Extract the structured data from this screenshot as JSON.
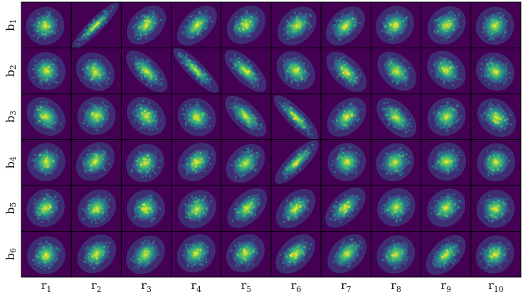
{
  "chart_data": {
    "type": "heatmap",
    "layout": "grid",
    "rows": [
      "b1",
      "b2",
      "b3",
      "b4",
      "b5",
      "b6"
    ],
    "cols": [
      "r1",
      "r2",
      "r3",
      "r4",
      "r5",
      "r6",
      "r7",
      "r8",
      "r9",
      "r10"
    ],
    "row_labels": [
      {
        "main": "b",
        "sub": "1"
      },
      {
        "main": "b",
        "sub": "2"
      },
      {
        "main": "b",
        "sub": "3"
      },
      {
        "main": "b",
        "sub": "4"
      },
      {
        "main": "b",
        "sub": "5"
      },
      {
        "main": "b",
        "sub": "6"
      }
    ],
    "col_labels": [
      {
        "main": "r",
        "sub": "1"
      },
      {
        "main": "r",
        "sub": "2"
      },
      {
        "main": "r",
        "sub": "3"
      },
      {
        "main": "r",
        "sub": "4"
      },
      {
        "main": "r",
        "sub": "5"
      },
      {
        "main": "r",
        "sub": "6"
      },
      {
        "main": "r",
        "sub": "7"
      },
      {
        "main": "r",
        "sub": "8"
      },
      {
        "main": "r",
        "sub": "9"
      },
      {
        "main": "r",
        "sub": "10"
      }
    ],
    "correlation": [
      [
        0.05,
        0.95,
        0.3,
        0.4,
        0.2,
        0.25,
        0.3,
        0.1,
        0.15,
        0.05
      ],
      [
        -0.05,
        -0.15,
        -0.55,
        -0.85,
        -0.6,
        -0.2,
        -0.45,
        -0.3,
        -0.2,
        -0.1
      ],
      [
        -0.2,
        0.05,
        -0.2,
        -0.1,
        -0.55,
        -0.8,
        0.3,
        -0.4,
        0.1,
        -0.2
      ],
      [
        0.05,
        0.2,
        0.1,
        0.2,
        0.25,
        0.75,
        0.05,
        0.1,
        0.05,
        0.05
      ],
      [
        0.1,
        0.15,
        0.05,
        0.15,
        0.4,
        0.35,
        0.45,
        0.1,
        0.15,
        0.05
      ],
      [
        0.05,
        0.2,
        0.2,
        0.15,
        0.15,
        0.35,
        0.3,
        0.1,
        0.4,
        0.1
      ]
    ],
    "colormap": [
      "#440154",
      "#3b528b",
      "#21908d",
      "#5dc962",
      "#fde725"
    ],
    "xlabel": "",
    "ylabel": "",
    "title": "",
    "grid": false
  }
}
